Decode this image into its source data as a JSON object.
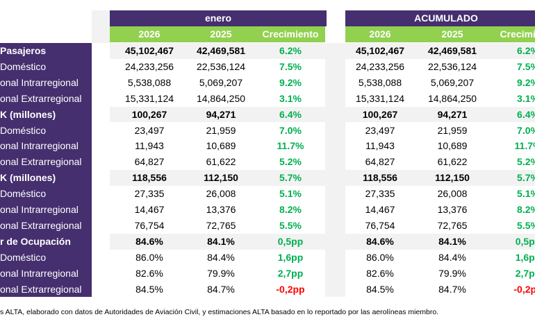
{
  "header": {
    "left_group": "enero",
    "right_group": "ACUMULADO",
    "columns": [
      "2026",
      "2025",
      "Crecimiento"
    ]
  },
  "colors": {
    "purple": "#452f6f",
    "green_header": "#92d050",
    "positive": "#00b050",
    "negative": "#ff0000"
  },
  "rows": [
    {
      "label": "Pasajeros",
      "bold": true,
      "v2026": "45,102,467",
      "v2025": "42,469,581",
      "growth": "6.2%",
      "neg": false
    },
    {
      "label": "Doméstico",
      "bold": false,
      "v2026": "24,233,256",
      "v2025": "22,536,124",
      "growth": "7.5%",
      "neg": false
    },
    {
      "label": "onal Intrarregional",
      "bold": false,
      "v2026": "5,538,088",
      "v2025": "5,069,207",
      "growth": "9.2%",
      "neg": false
    },
    {
      "label": "onal Extrarregional",
      "bold": false,
      "v2026": "15,331,124",
      "v2025": "14,864,250",
      "growth": "3.1%",
      "neg": false
    },
    {
      "label": "K (millones)",
      "bold": true,
      "v2026": "100,267",
      "v2025": "94,271",
      "growth": "6.4%",
      "neg": false
    },
    {
      "label": "Doméstico",
      "bold": false,
      "v2026": "23,497",
      "v2025": "21,959",
      "growth": "7.0%",
      "neg": false
    },
    {
      "label": "onal Intrarregional",
      "bold": false,
      "v2026": "11,943",
      "v2025": "10,689",
      "growth": "11.7%",
      "neg": false
    },
    {
      "label": "onal Extrarregional",
      "bold": false,
      "v2026": "64,827",
      "v2025": "61,622",
      "growth": "5.2%",
      "neg": false
    },
    {
      "label": "K (millones)",
      "bold": true,
      "v2026": "118,556",
      "v2025": "112,150",
      "growth": "5.7%",
      "neg": false
    },
    {
      "label": "Doméstico",
      "bold": false,
      "v2026": "27,335",
      "v2025": "26,008",
      "growth": "5.1%",
      "neg": false
    },
    {
      "label": "onal Intrarregional",
      "bold": false,
      "v2026": "14,467",
      "v2025": "13,376",
      "growth": "8.2%",
      "neg": false
    },
    {
      "label": "onal Extrarregional",
      "bold": false,
      "v2026": "76,754",
      "v2025": "72,765",
      "growth": "5.5%",
      "neg": false
    },
    {
      "label": "r de Ocupación",
      "bold": true,
      "v2026": "84.6%",
      "v2025": "84.1%",
      "growth": "0,5pp",
      "neg": false
    },
    {
      "label": "Doméstico",
      "bold": false,
      "v2026": "86.0%",
      "v2025": "84.4%",
      "growth": "1,6pp",
      "neg": false
    },
    {
      "label": "onal Intrarregional",
      "bold": false,
      "v2026": "82.6%",
      "v2025": "79.9%",
      "growth": "2,7pp",
      "neg": false
    },
    {
      "label": "onal Extrarregional",
      "bold": false,
      "v2026": "84.5%",
      "v2025": "84.7%",
      "growth": "-0,2pp",
      "neg": true
    }
  ],
  "footer": "s ALTA, elaborado con datos de Autoridades de Aviación Civil,  y estimaciones ALTA basado en lo reportado por las aerolíneas miembro."
}
